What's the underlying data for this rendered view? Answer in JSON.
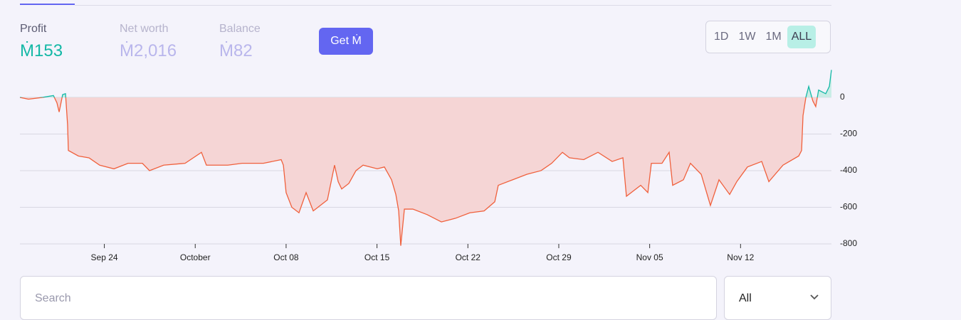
{
  "stats": [
    {
      "label": "Profit",
      "value": "Ṁ153"
    },
    {
      "label": "Net worth",
      "value": "Ṁ2,016"
    },
    {
      "label": "Balance",
      "value": "Ṁ82"
    }
  ],
  "button": "Get Ṁ",
  "range_options": [
    "1D",
    "1W",
    "1M",
    "ALL"
  ],
  "selected_range": "ALL",
  "search": {
    "placeholder": "Search"
  },
  "filter": "All",
  "chart_data": {
    "type": "line",
    "x": [
      260.5,
      261.16,
      262.25,
      263.08,
      263.35,
      263.52,
      263.79,
      264.01,
      264.17,
      264.23,
      265.0,
      265.82,
      266.64,
      267.74,
      268.83,
      269.93,
      270.48,
      271.57,
      273.22,
      274.48,
      274.86,
      276.51,
      277.61,
      279.25,
      280.62,
      280.79,
      281.0,
      281.44,
      281.99,
      282.54,
      283.09,
      284.18,
      284.73,
      285.01,
      285.28,
      285.83,
      286.38,
      286.93,
      288.02,
      288.57,
      289.12,
      289.45,
      289.67,
      289.83,
      290.11,
      290.76,
      291.86,
      292.96,
      294.05,
      295.15,
      296.25,
      297.07,
      297.34,
      298.44,
      299.54,
      300.63,
      301.45,
      302.28,
      302.82,
      303.92,
      305.02,
      306.11,
      306.94,
      307.21,
      308.31,
      308.86,
      309.13,
      309.95,
      310.5,
      310.77,
      311.6,
      312.14,
      312.97,
      313.68,
      314.34,
      315.16,
      315.71,
      316.53,
      317.63,
      318.18,
      319.27,
      320.48,
      320.7,
      320.81,
      321.03,
      321.25,
      321.57,
      321.79,
      322.01,
      322.56,
      322.84,
      323.0
    ],
    "values": [
      0,
      -10,
      0,
      10,
      -30,
      -80,
      15,
      20,
      -150,
      -290,
      -320,
      -330,
      -370,
      -390,
      -360,
      -360,
      -400,
      -370,
      -360,
      -300,
      -370,
      -370,
      -360,
      -360,
      -340,
      -370,
      -520,
      -600,
      -630,
      -520,
      -620,
      -560,
      -370,
      -460,
      -500,
      -470,
      -400,
      -370,
      -390,
      -380,
      -450,
      -530,
      -620,
      -810,
      -610,
      -610,
      -640,
      -680,
      -660,
      -630,
      -620,
      -570,
      -480,
      -450,
      -420,
      -400,
      -360,
      -300,
      -330,
      -340,
      -300,
      -350,
      -330,
      -540,
      -480,
      -520,
      -360,
      -360,
      -300,
      -480,
      -450,
      -360,
      -420,
      -590,
      -450,
      -530,
      -460,
      -380,
      -350,
      -460,
      -370,
      -320,
      -290,
      -100,
      0,
      60,
      -20,
      -50,
      40,
      20,
      60,
      150
    ],
    "xlim": [
      260.5,
      323.0
    ],
    "xticks": [
      {
        "value": 267,
        "label": "Sep 24"
      },
      {
        "value": 274,
        "label": "October"
      },
      {
        "value": 281,
        "label": "Oct 08"
      },
      {
        "value": 288,
        "label": "Oct 15"
      },
      {
        "value": 295,
        "label": "Oct 22"
      },
      {
        "value": 302,
        "label": "Oct 29"
      },
      {
        "value": 309,
        "label": "Nov 05"
      },
      {
        "value": 316,
        "label": "Nov 12"
      }
    ],
    "ylim": [
      -800,
      155
    ],
    "yticks": [
      0,
      -200,
      -400,
      -600,
      -800
    ],
    "grid": true,
    "colors": {
      "above": "#14b8a6",
      "below": "#f0603c",
      "above_fill": "#c9ede6",
      "below_fill": "#f5d5d5"
    }
  }
}
